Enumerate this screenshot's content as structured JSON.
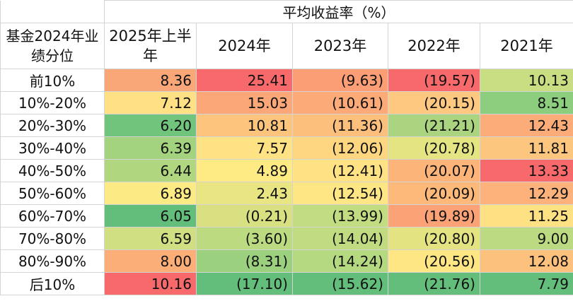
{
  "table": {
    "title": "平均收益率（%）",
    "row_header_label": "基金2024年业绩分位",
    "columns": [
      "2025年上半年",
      "2024年",
      "2023年",
      "2022年",
      "2021年"
    ],
    "rows": [
      {
        "label": "前10%",
        "values": [
          "8.36",
          "25.41",
          "(9.63)",
          "(19.57)",
          "10.13"
        ],
        "colors": [
          "#f9a679",
          "#f8696b",
          "#fb9d75",
          "#f8696b",
          "#c9de82"
        ]
      },
      {
        "label": "10%-20%",
        "values": [
          "7.12",
          "15.03",
          "(10.61)",
          "(20.15)",
          "8.51"
        ],
        "colors": [
          "#ffe084",
          "#fba777",
          "#fcaa78",
          "#fec880",
          "#8cce7e"
        ]
      },
      {
        "label": "20%-30%",
        "values": [
          "6.20",
          "10.81",
          "(11.36)",
          "(21.21)",
          "12.43"
        ],
        "colors": [
          "#70c47c",
          "#fdc47d",
          "#fdbf7c",
          "#aad47f",
          "#fbac78"
        ]
      },
      {
        "label": "30%-40%",
        "values": [
          "6.39",
          "7.57",
          "(12.06)",
          "(20.78)",
          "11.81"
        ],
        "colors": [
          "#a3d37f",
          "#ffe283",
          "#fed680",
          "#e4e582",
          "#fdc67e"
        ]
      },
      {
        "label": "40%-50%",
        "values": [
          "6.44",
          "4.89",
          "(12.41)",
          "(20.07)",
          "13.33"
        ],
        "colors": [
          "#b0d780",
          "#feeb84",
          "#ffe283",
          "#fcb479",
          "#f8696b"
        ]
      },
      {
        "label": "50%-60%",
        "values": [
          "6.89",
          "2.43",
          "(12.54)",
          "(20.09)",
          "12.29"
        ],
        "colors": [
          "#fcea84",
          "#e9e583",
          "#ffe684",
          "#fcb97a",
          "#fcb27a"
        ]
      },
      {
        "label": "60%-70%",
        "values": [
          "6.05",
          "(0.21)",
          "(13.99)",
          "(19.89)",
          "11.25"
        ],
        "colors": [
          "#63be7b",
          "#d8e081",
          "#c2dc81",
          "#fba276",
          "#fde183"
        ]
      },
      {
        "label": "70%-80%",
        "values": [
          "6.59",
          "(3.60)",
          "(14.04)",
          "(20.80)",
          "9.00"
        ],
        "colors": [
          "#d0df82",
          "#bcda80",
          "#c1db81",
          "#e3e382",
          "#bcda81"
        ]
      },
      {
        "label": "80%-90%",
        "values": [
          "8.00",
          "(8.31)",
          "(14.24)",
          "(20.56)",
          "12.08"
        ],
        "colors": [
          "#fbae78",
          "#9bd07e",
          "#b5d980",
          "#fde683",
          "#fcc27d"
        ]
      },
      {
        "label": "后10%",
        "values": [
          "10.16",
          "(17.10)",
          "(15.62)",
          "(21.76)",
          "7.79"
        ],
        "colors": [
          "#f8696b",
          "#63be7b",
          "#63be7b",
          "#63be7b",
          "#63be7b"
        ]
      }
    ]
  }
}
